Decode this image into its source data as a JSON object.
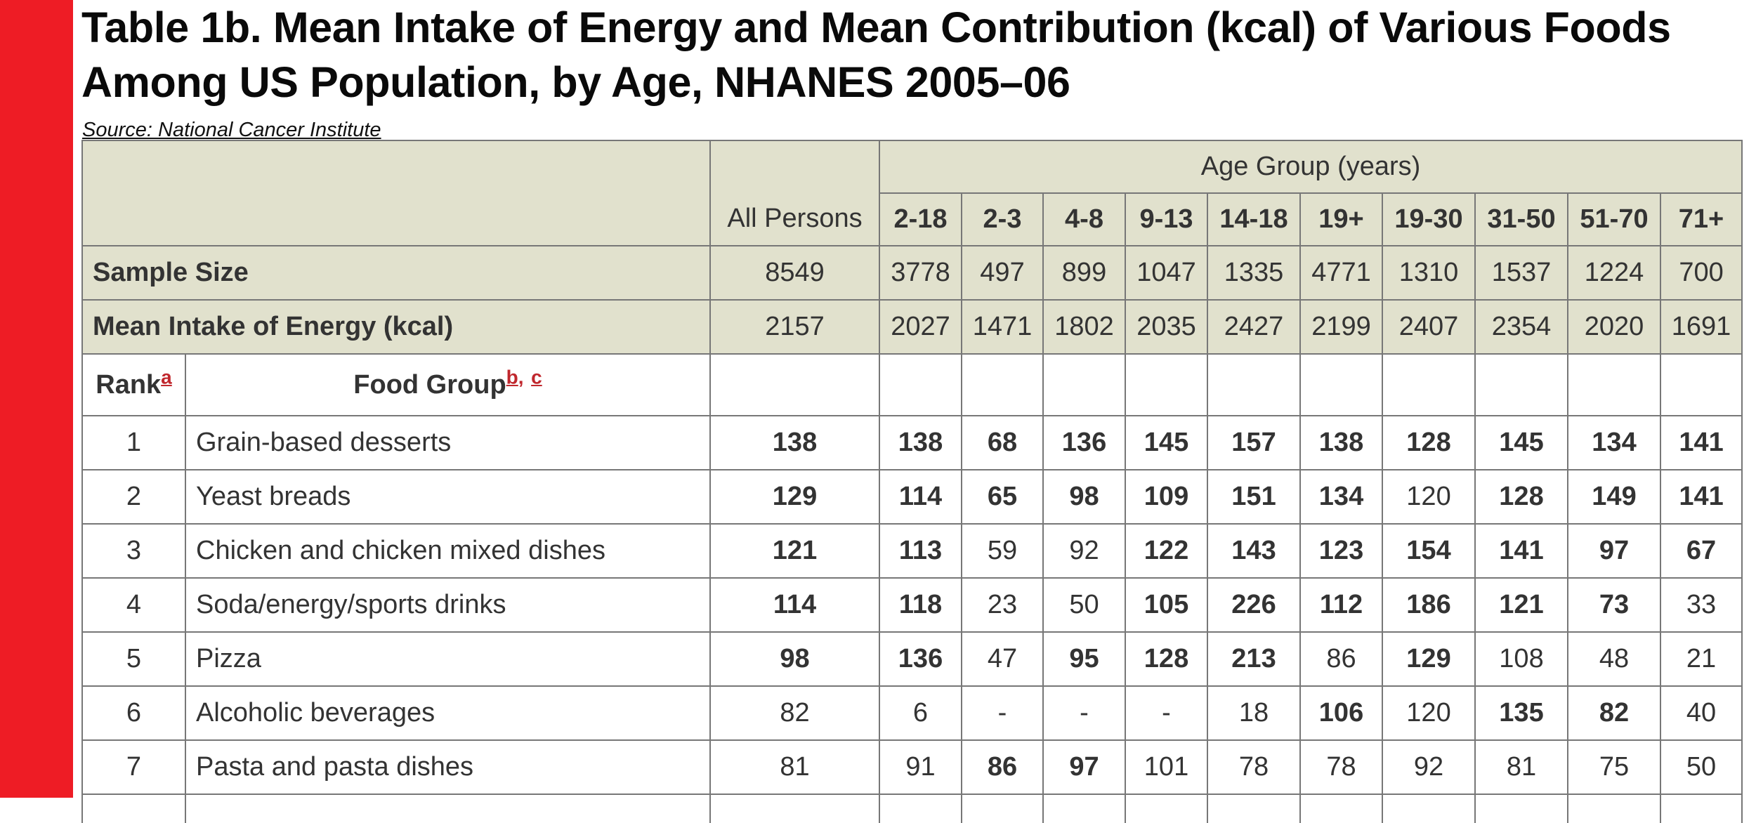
{
  "title": "Table 1b. Mean Intake of Energy and Mean Contribution (kcal) of Various Foods Among US Population, by Age, NHANES 2005–06",
  "source": "Source: National Cancer Institute",
  "header": {
    "age_group": "Age Group (years)",
    "all_persons": "All Persons",
    "age_columns": [
      "2-18",
      "2-3",
      "4-8",
      "9-13",
      "14-18",
      "19+",
      "19-30",
      "31-50",
      "51-70",
      "71+"
    ]
  },
  "sample_size": {
    "label": "Sample Size",
    "all": "8549",
    "values": [
      "3778",
      "497",
      "899",
      "1047",
      "1335",
      "4771",
      "1310",
      "1537",
      "1224",
      "700"
    ]
  },
  "mean_energy": {
    "label": "Mean Intake of Energy (kcal)",
    "all": "2157",
    "values": [
      "2027",
      "1471",
      "1802",
      "2035",
      "2427",
      "2199",
      "2407",
      "2354",
      "2020",
      "1691"
    ]
  },
  "rank_header": {
    "rank": "Rank",
    "rank_note": "a",
    "food_group": "Food Group",
    "food_note_b": "b",
    "food_note_sep": ",",
    "food_note_c": "c"
  },
  "rows": [
    {
      "rank": "1",
      "food": "Grain-based desserts",
      "all": "138",
      "all_bold": true,
      "values": [
        "138",
        "68",
        "136",
        "145",
        "157",
        "138",
        "128",
        "145",
        "134",
        "141"
      ],
      "bold": [
        true,
        true,
        true,
        true,
        true,
        true,
        true,
        true,
        true,
        true
      ]
    },
    {
      "rank": "2",
      "food": "Yeast breads",
      "all": "129",
      "all_bold": true,
      "values": [
        "114",
        "65",
        "98",
        "109",
        "151",
        "134",
        "120",
        "128",
        "149",
        "141"
      ],
      "bold": [
        true,
        true,
        true,
        true,
        true,
        true,
        false,
        true,
        true,
        true
      ]
    },
    {
      "rank": "3",
      "food": "Chicken and chicken mixed dishes",
      "all": "121",
      "all_bold": true,
      "values": [
        "113",
        "59",
        "92",
        "122",
        "143",
        "123",
        "154",
        "141",
        "97",
        "67"
      ],
      "bold": [
        true,
        false,
        false,
        true,
        true,
        true,
        true,
        true,
        true,
        true
      ]
    },
    {
      "rank": "4",
      "food": "Soda/energy/sports drinks",
      "all": "114",
      "all_bold": true,
      "values": [
        "118",
        "23",
        "50",
        "105",
        "226",
        "112",
        "186",
        "121",
        "73",
        "33"
      ],
      "bold": [
        true,
        false,
        false,
        true,
        true,
        true,
        true,
        true,
        true,
        false
      ]
    },
    {
      "rank": "5",
      "food": "Pizza",
      "all": "98",
      "all_bold": true,
      "values": [
        "136",
        "47",
        "95",
        "128",
        "213",
        "86",
        "129",
        "108",
        "48",
        "21"
      ],
      "bold": [
        true,
        false,
        true,
        true,
        true,
        false,
        true,
        false,
        false,
        false
      ]
    },
    {
      "rank": "6",
      "food": "Alcoholic beverages",
      "all": "82",
      "all_bold": false,
      "values": [
        "6",
        "-",
        "-",
        "-",
        "18",
        "106",
        "120",
        "135",
        "82",
        "40"
      ],
      "bold": [
        false,
        false,
        false,
        false,
        false,
        true,
        false,
        true,
        true,
        false
      ]
    },
    {
      "rank": "7",
      "food": "Pasta and pasta dishes",
      "all": "81",
      "all_bold": false,
      "values": [
        "91",
        "86",
        "97",
        "101",
        "78",
        "78",
        "92",
        "81",
        "75",
        "50"
      ],
      "bold": [
        false,
        true,
        true,
        false,
        false,
        false,
        false,
        false,
        false,
        false
      ]
    }
  ]
}
